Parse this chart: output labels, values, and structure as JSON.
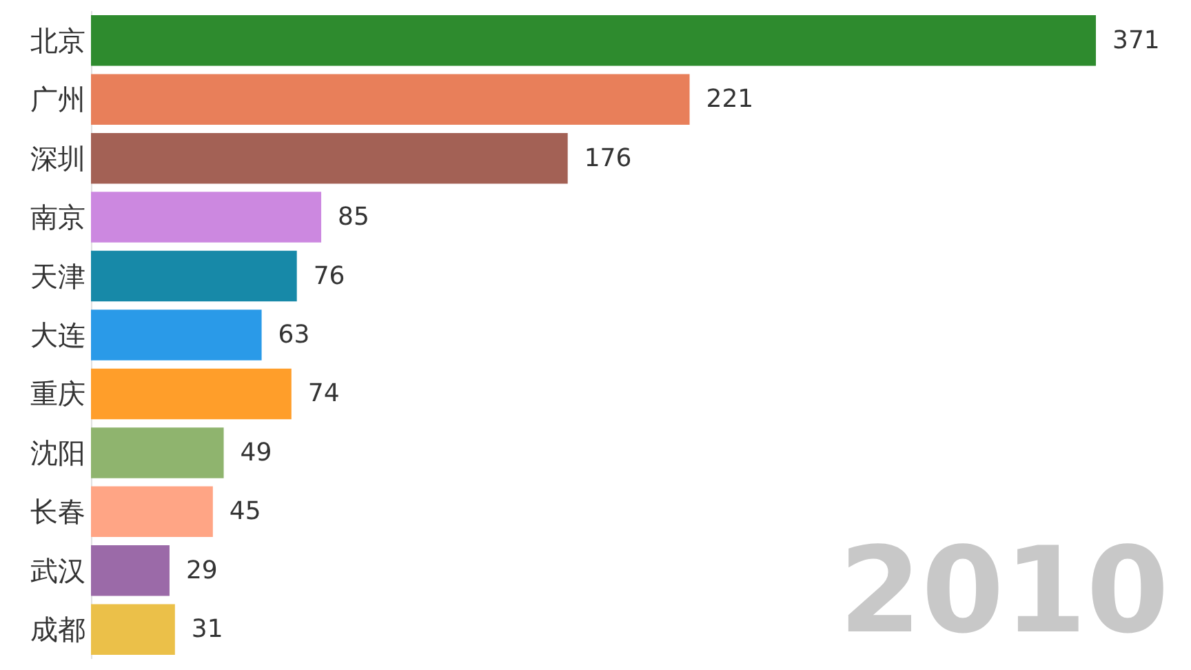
{
  "chart_data": {
    "type": "bar",
    "orientation": "horizontal",
    "categories": [
      "北京",
      "广州",
      "深圳",
      "南京",
      "天津",
      "大连",
      "重庆",
      "沈阳",
      "长春",
      "武汉",
      "成都"
    ],
    "values": [
      371,
      221,
      176,
      85,
      76,
      63,
      74,
      49,
      45,
      29,
      31
    ],
    "colors": [
      "#2e8b2e",
      "#e87f5a",
      "#a36155",
      "#cc88e0",
      "#1789a8",
      "#2a9ae8",
      "#ff9e2a",
      "#8fb46e",
      "#ffa585",
      "#9b6aa8",
      "#ebc049"
    ],
    "data_labels": true,
    "tick_labels": "y",
    "annotations": [
      "2010"
    ]
  }
}
